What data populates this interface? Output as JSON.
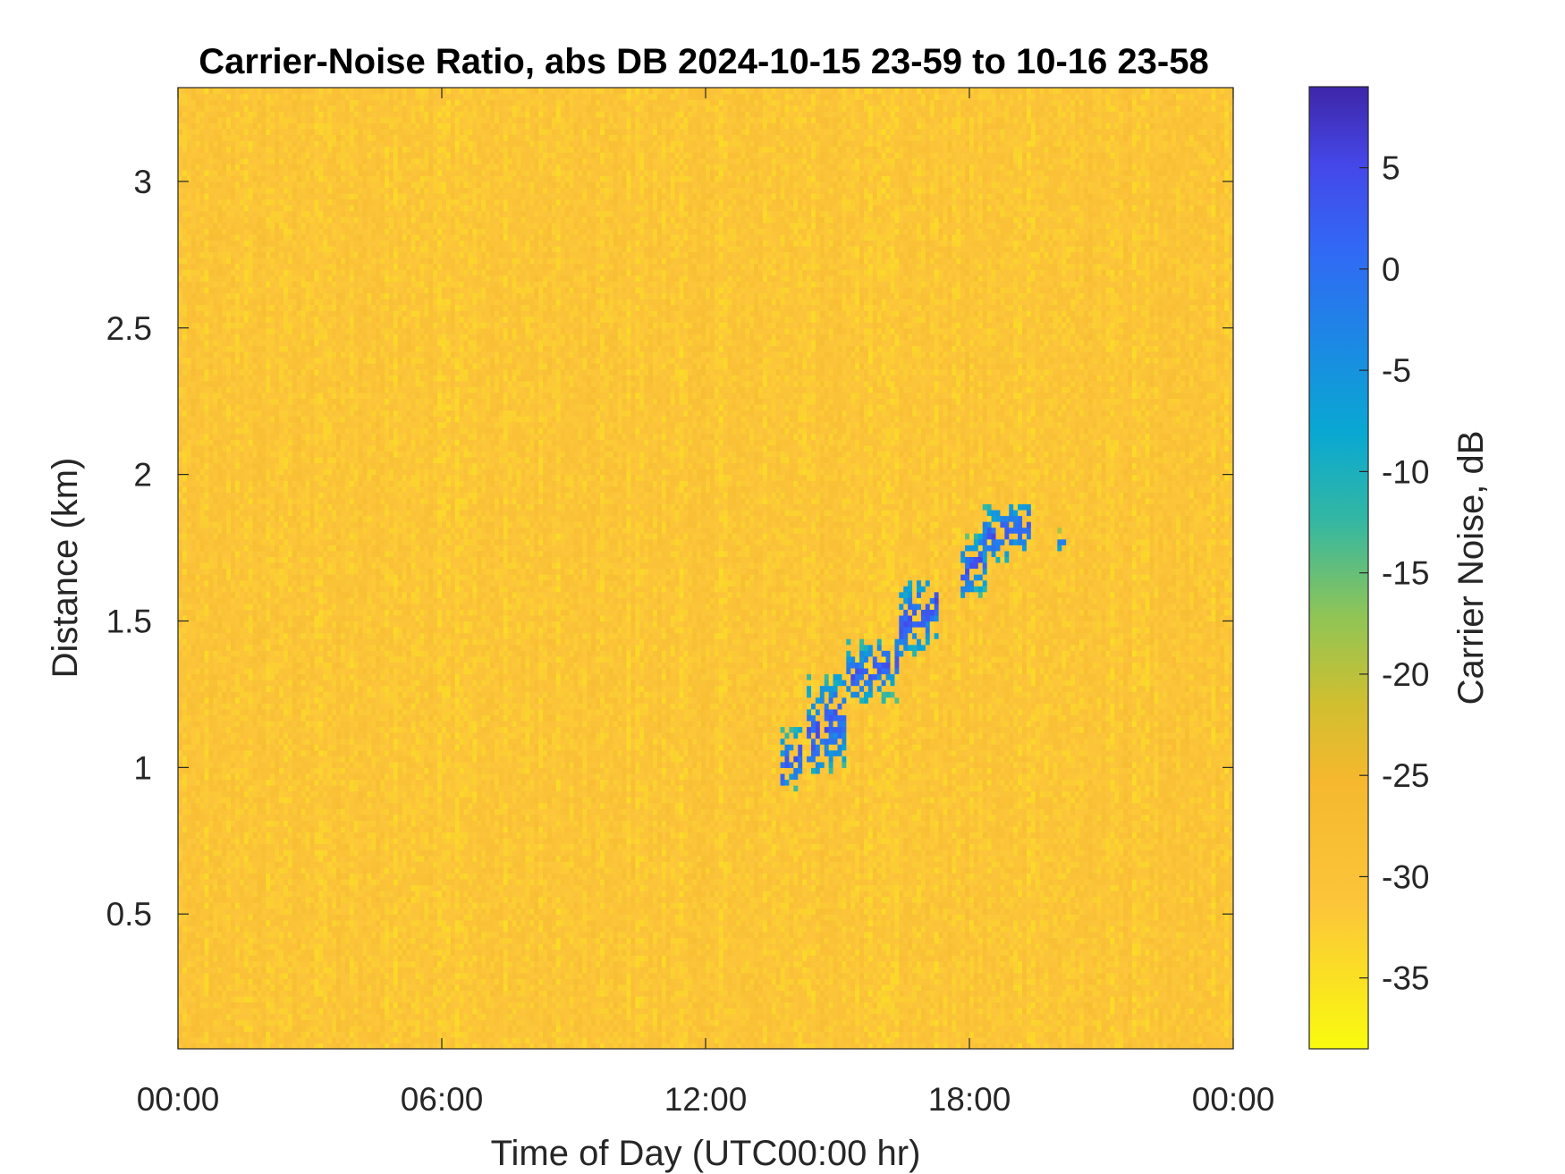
{
  "chart_data": {
    "type": "heatmap",
    "title": "Carrier-Noise Ratio, abs DB 2024-10-15 23-59 to 10-16 23-58",
    "xlabel": "Time of Day (UTC00:00 hr)",
    "ylabel": "Distance (km)",
    "colorbar_label": "Carrier Noise, dB",
    "x_unit": "hours",
    "xlim": [
      0,
      24
    ],
    "ylim": [
      0.04,
      3.32
    ],
    "clim": [
      -38.5,
      9
    ],
    "x_ticks": [
      0,
      6,
      12,
      18,
      24
    ],
    "x_tick_labels": [
      "00:00",
      "06:00",
      "12:00",
      "18:00",
      "00:00"
    ],
    "y_ticks": [
      0.5,
      1,
      1.5,
      2,
      2.5,
      3
    ],
    "y_tick_labels": [
      "0.5",
      "1",
      "1.5",
      "2",
      "2.5",
      "3"
    ],
    "colorbar_ticks": [
      5,
      0,
      -5,
      -10,
      -15,
      -20,
      -25,
      -30,
      -35
    ],
    "colorbar_tick_labels": [
      "5",
      "0",
      "-5",
      "-10",
      "-15",
      "-20",
      "-25",
      "-30",
      "-35"
    ],
    "colormap": "parula",
    "background_level_db": -31,
    "grid": false,
    "features": [
      {
        "x_start": 13.7,
        "x_end": 14.2,
        "y_min": 0.92,
        "y_max": 1.12,
        "peak_db": 7
      },
      {
        "x_start": 14.3,
        "x_end": 15.2,
        "y_min": 0.98,
        "y_max": 1.3,
        "peak_db": 7
      },
      {
        "x_start": 15.2,
        "x_end": 16.3,
        "y_min": 1.22,
        "y_max": 1.43,
        "peak_db": 6
      },
      {
        "x_start": 16.4,
        "x_end": 17.2,
        "y_min": 1.38,
        "y_max": 1.64,
        "peak_db": 7
      },
      {
        "x_start": 17.8,
        "x_end": 18.3,
        "y_min": 1.58,
        "y_max": 1.78,
        "peak_db": 7
      },
      {
        "x_start": 18.3,
        "x_end": 19.4,
        "y_min": 1.7,
        "y_max": 1.9,
        "peak_db": 6
      },
      {
        "x_start": 20.0,
        "x_end": 20.2,
        "y_min": 1.73,
        "y_max": 1.8,
        "peak_db": 3
      }
    ]
  }
}
